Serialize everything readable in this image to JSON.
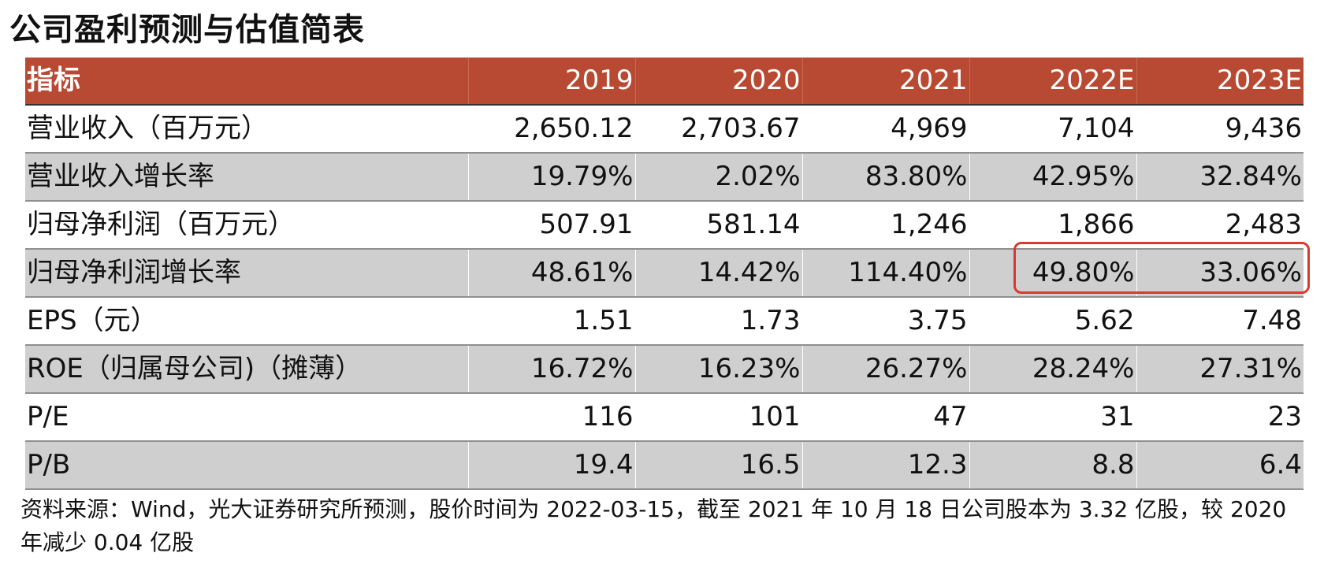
{
  "title": "公司盈利预测与估值简表",
  "table": {
    "header": [
      "指标",
      "2019",
      "2020",
      "2021",
      "2022E",
      "2023E"
    ],
    "rows": [
      [
        "营业收入（百万元）",
        "2,650.12",
        "2,703.67",
        "4,969",
        "7,104",
        "9,436"
      ],
      [
        "营业收入增长率",
        "19.79%",
        "2.02%",
        "83.80%",
        "42.95%",
        "32.84%"
      ],
      [
        "归母净利润（百万元）",
        "507.91",
        "581.14",
        "1,246",
        "1,866",
        "2,483"
      ],
      [
        "归母净利润增长率",
        "48.61%",
        "14.42%",
        "114.40%",
        "49.80%",
        "33.06%"
      ],
      [
        "EPS（元）",
        "1.51",
        "1.73",
        "3.75",
        "5.62",
        "7.48"
      ],
      [
        "ROE（归属母公司)（摊薄）",
        "16.72%",
        "16.23%",
        "26.27%",
        "28.24%",
        "27.31%"
      ],
      [
        "P/E",
        "116",
        "101",
        "47",
        "31",
        "23"
      ],
      [
        "P/B",
        "19.4",
        "16.5",
        "12.3",
        "8.8",
        "6.4"
      ]
    ]
  },
  "source": "资料来源：Wind，光大证券研究所预测，股价时间为 2022-03-15，截至 2021 年 10 月 18 日公司股本为 3.32 亿股，较 2020 年减少 0.04 亿股",
  "colors": {
    "header_bg": "#b84a33",
    "shade_bg": "#cfcfcf",
    "highlight_border": "#d73a2e"
  }
}
